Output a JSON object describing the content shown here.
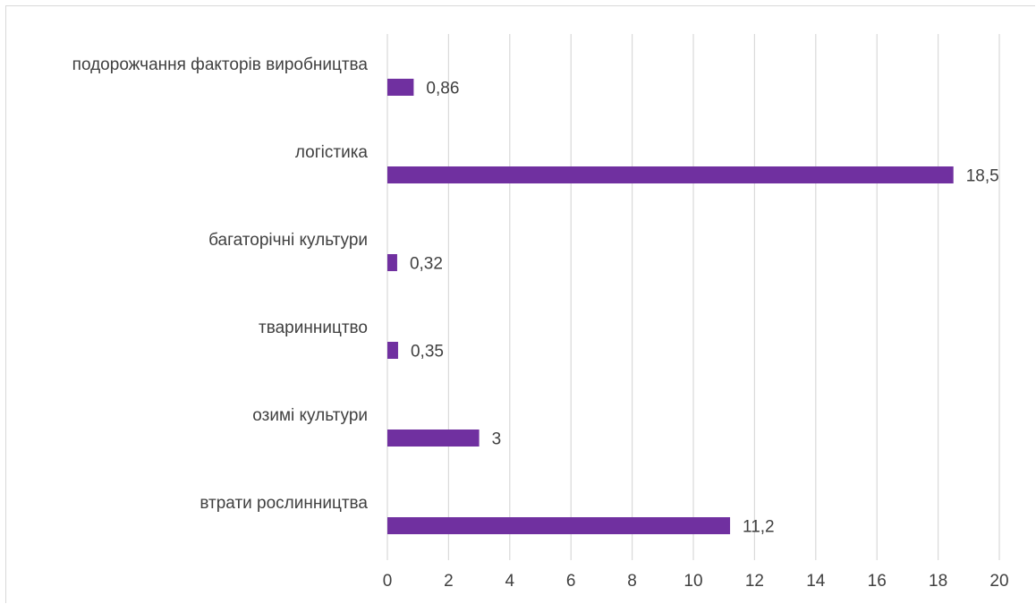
{
  "chart_data": {
    "type": "bar",
    "orientation": "horizontal",
    "title": "",
    "xlabel": "",
    "ylabel": "",
    "categories": [
      "подорожчання факторів виробництва",
      "логістика",
      "багаторічні культури",
      "тваринництво",
      "озимі культури",
      "втрати рослинництва"
    ],
    "values": [
      0.86,
      18.5,
      0.32,
      0.35,
      3,
      11.2
    ],
    "value_labels": [
      "0,86",
      "18,5",
      "0,32",
      "0,35",
      "3",
      "11,2"
    ],
    "xlim": [
      0,
      20
    ],
    "xticks": [
      "0",
      "2",
      "4",
      "6",
      "8",
      "10",
      "12",
      "14",
      "16",
      "18",
      "20"
    ],
    "grid": "vertical",
    "legend": "none",
    "colors": {
      "bar": "#7030a0",
      "grid": "#d9d9d9",
      "text": "#404040"
    }
  }
}
